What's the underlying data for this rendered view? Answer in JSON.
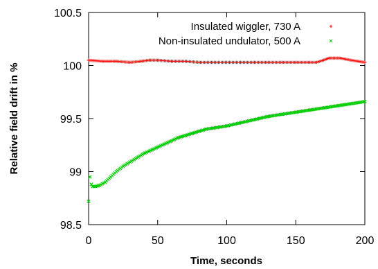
{
  "chart_data": {
    "type": "scatter",
    "xlabel": "Time, seconds",
    "ylabel": "Relative field drift in %",
    "xlim": [
      0,
      200
    ],
    "ylim": [
      98.5,
      100.5
    ],
    "x_ticks": [
      0,
      50,
      100,
      150,
      200
    ],
    "y_ticks": [
      98.5,
      99,
      99.5,
      100,
      100.5
    ],
    "y_tick_labels": [
      "98.5",
      "99",
      "99.5",
      "100",
      "100.5"
    ],
    "grid": false,
    "legend_position": "top-right",
    "series": [
      {
        "name": "Insulated wiggler, 730 A",
        "marker": "+",
        "color": "#ff0000",
        "x": [
          0,
          10,
          20,
          30,
          38,
          44,
          50,
          60,
          70,
          80,
          90,
          100,
          110,
          120,
          130,
          140,
          150,
          160,
          165,
          170,
          174,
          178,
          182,
          186,
          190,
          195,
          200
        ],
        "y": [
          100.05,
          100.04,
          100.04,
          100.03,
          100.04,
          100.05,
          100.05,
          100.04,
          100.04,
          100.03,
          100.03,
          100.03,
          100.03,
          100.03,
          100.03,
          100.03,
          100.03,
          100.03,
          100.03,
          100.05,
          100.07,
          100.07,
          100.07,
          100.06,
          100.05,
          100.04,
          100.03
        ]
      },
      {
        "name": "Non-insulated undulator, 500 A",
        "marker": "x",
        "color": "#00cc00",
        "x": [
          0,
          1,
          2,
          3,
          5,
          8,
          12,
          16,
          20,
          25,
          30,
          35,
          40,
          45,
          50,
          55,
          60,
          65,
          70,
          75,
          80,
          85,
          90,
          95,
          100,
          110,
          120,
          130,
          140,
          150,
          160,
          170,
          180,
          190,
          200
        ],
        "y": [
          98.72,
          98.95,
          98.88,
          98.86,
          98.86,
          98.87,
          98.9,
          98.95,
          99.0,
          99.05,
          99.09,
          99.13,
          99.17,
          99.2,
          99.23,
          99.26,
          99.29,
          99.32,
          99.34,
          99.36,
          99.38,
          99.4,
          99.41,
          99.42,
          99.43,
          99.46,
          99.49,
          99.52,
          99.54,
          99.56,
          99.58,
          99.6,
          99.62,
          99.64,
          99.66
        ]
      }
    ]
  }
}
